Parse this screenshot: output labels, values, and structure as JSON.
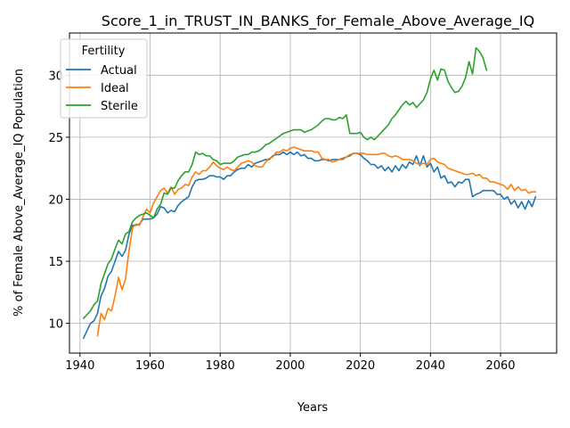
{
  "chart_data": {
    "type": "line",
    "title": "Score_1_in_TRUST_IN_BANKS_for_Female_Above_Average_IQ",
    "xlabel": "Years",
    "ylabel": "% of Female Above_Average_IQ Population",
    "xlim": [
      1937,
      2076
    ],
    "ylim": [
      7.6,
      33.4
    ],
    "xticks": [
      1940,
      1960,
      1980,
      2000,
      2020,
      2040,
      2060
    ],
    "yticks": [
      10,
      15,
      20,
      25,
      30
    ],
    "grid": true,
    "legend": {
      "title": "Fertility",
      "placement": "top-left"
    },
    "series": [
      {
        "name": "Actual",
        "color": "#1f77b4",
        "x": [
          1941,
          1942,
          1943,
          1944,
          1945,
          1946,
          1947,
          1948,
          1949,
          1950,
          1951,
          1952,
          1953,
          1954,
          1955,
          1956,
          1957,
          1958,
          1959,
          1960,
          1961,
          1962,
          1963,
          1964,
          1965,
          1966,
          1967,
          1968,
          1969,
          1970,
          1971,
          1972,
          1973,
          1974,
          1975,
          1976,
          1977,
          1978,
          1979,
          1980,
          1981,
          1982,
          1983,
          1984,
          1985,
          1986,
          1987,
          1988,
          1989,
          1990,
          1991,
          1992,
          1993,
          1994,
          1995,
          1996,
          1997,
          1998,
          1999,
          2000,
          2001,
          2002,
          2003,
          2004,
          2005,
          2006,
          2007,
          2008,
          2009,
          2010,
          2011,
          2012,
          2013,
          2014,
          2015,
          2016,
          2017,
          2018,
          2019,
          2020,
          2021,
          2022,
          2023,
          2024,
          2025,
          2026,
          2027,
          2028,
          2029,
          2030,
          2031,
          2032,
          2033,
          2034,
          2035,
          2036,
          2037,
          2038,
          2039,
          2040,
          2041,
          2042,
          2043,
          2044,
          2045,
          2046,
          2047,
          2048,
          2049,
          2050,
          2051,
          2052,
          2053,
          2054,
          2055,
          2056,
          2057,
          2058,
          2059,
          2060,
          2061,
          2062,
          2063,
          2064,
          2065,
          2066,
          2067,
          2068,
          2069,
          2070
        ],
        "values": [
          8.8,
          9.4,
          10.0,
          10.2,
          10.8,
          12.2,
          12.8,
          13.8,
          14.2,
          15.0,
          15.8,
          15.4,
          15.9,
          17.2,
          17.9,
          17.9,
          18.0,
          18.4,
          18.4,
          18.4,
          18.5,
          18.8,
          19.4,
          19.3,
          18.9,
          19.1,
          19.0,
          19.5,
          19.8,
          20.0,
          20.2,
          21.0,
          21.5,
          21.6,
          21.6,
          21.7,
          21.9,
          21.9,
          21.8,
          21.8,
          21.6,
          21.9,
          21.9,
          22.2,
          22.4,
          22.5,
          22.5,
          22.8,
          22.6,
          22.9,
          23.0,
          23.1,
          23.2,
          23.2,
          23.5,
          23.6,
          23.6,
          23.8,
          23.6,
          23.8,
          23.6,
          23.8,
          23.5,
          23.6,
          23.3,
          23.3,
          23.1,
          23.1,
          23.2,
          23.2,
          23.1,
          23.2,
          23.2,
          23.2,
          23.3,
          23.4,
          23.5,
          23.7,
          23.7,
          23.6,
          23.3,
          23.1,
          22.8,
          22.8,
          22.5,
          22.7,
          22.3,
          22.6,
          22.2,
          22.7,
          22.3,
          22.8,
          22.5,
          23.0,
          22.8,
          23.5,
          22.7,
          23.5,
          22.6,
          22.9,
          22.2,
          22.6,
          21.7,
          21.9,
          21.3,
          21.4,
          21.0,
          21.4,
          21.3,
          21.6,
          21.6,
          20.2,
          20.4,
          20.5,
          20.7,
          20.7,
          20.7,
          20.7,
          20.4,
          20.4,
          20.0,
          20.2,
          19.6,
          19.9,
          19.3,
          19.8,
          19.2,
          19.9,
          19.4,
          20.2
        ]
      },
      {
        "name": "Ideal",
        "color": "#ff7f0e",
        "x": [
          1945,
          1946,
          1947,
          1948,
          1949,
          1950,
          1951,
          1952,
          1953,
          1954,
          1955,
          1956,
          1957,
          1958,
          1959,
          1960,
          1961,
          1962,
          1963,
          1964,
          1965,
          1966,
          1967,
          1968,
          1969,
          1970,
          1971,
          1972,
          1973,
          1974,
          1975,
          1976,
          1977,
          1978,
          1979,
          1980,
          1981,
          1982,
          1983,
          1984,
          1985,
          1986,
          1987,
          1988,
          1989,
          1990,
          1991,
          1992,
          1993,
          1994,
          1995,
          1996,
          1997,
          1998,
          1999,
          2000,
          2001,
          2002,
          2003,
          2004,
          2005,
          2006,
          2007,
          2008,
          2009,
          2010,
          2011,
          2012,
          2013,
          2014,
          2015,
          2016,
          2017,
          2018,
          2019,
          2020,
          2021,
          2022,
          2023,
          2024,
          2025,
          2026,
          2027,
          2028,
          2029,
          2030,
          2031,
          2032,
          2033,
          2034,
          2035,
          2036,
          2037,
          2038,
          2039,
          2040,
          2041,
          2042,
          2043,
          2044,
          2045,
          2046,
          2047,
          2048,
          2049,
          2050,
          2051,
          2052,
          2053,
          2054,
          2055,
          2056,
          2057,
          2058,
          2059,
          2060,
          2061,
          2062,
          2063,
          2064,
          2065,
          2066,
          2067,
          2068,
          2069,
          2070
        ],
        "values": [
          9.0,
          10.8,
          10.3,
          11.2,
          11.0,
          12.2,
          13.7,
          12.7,
          13.6,
          15.9,
          17.7,
          18.0,
          17.9,
          18.6,
          19.2,
          18.9,
          19.7,
          20.2,
          20.7,
          20.9,
          20.5,
          21.0,
          20.4,
          20.8,
          20.9,
          21.2,
          21.1,
          21.8,
          22.2,
          22.0,
          22.3,
          22.3,
          22.6,
          23.0,
          22.7,
          22.5,
          22.4,
          22.6,
          22.4,
          22.3,
          22.6,
          22.9,
          23.0,
          23.1,
          23.0,
          22.7,
          22.6,
          22.6,
          23.0,
          23.3,
          23.4,
          23.8,
          23.8,
          24.0,
          23.9,
          24.1,
          24.2,
          24.1,
          24.0,
          23.9,
          23.9,
          23.9,
          23.8,
          23.8,
          23.3,
          23.2,
          23.2,
          23.0,
          23.1,
          23.2,
          23.2,
          23.4,
          23.6,
          23.7,
          23.7,
          23.7,
          23.7,
          23.6,
          23.6,
          23.6,
          23.6,
          23.7,
          23.7,
          23.5,
          23.4,
          23.5,
          23.4,
          23.2,
          23.2,
          23.2,
          23.1,
          22.9,
          22.8,
          22.9,
          22.8,
          23.2,
          23.3,
          23.0,
          22.9,
          22.8,
          22.5,
          22.4,
          22.3,
          22.2,
          22.1,
          22.0,
          22.0,
          22.1,
          21.9,
          22.0,
          21.7,
          21.7,
          21.4,
          21.4,
          21.3,
          21.2,
          21.1,
          20.8,
          21.2,
          20.7,
          21.0,
          20.7,
          20.8,
          20.5,
          20.6,
          20.6
        ]
      },
      {
        "name": "Sterile",
        "color": "#2ca02c",
        "x": [
          1941,
          1942,
          1943,
          1944,
          1945,
          1946,
          1947,
          1948,
          1949,
          1950,
          1951,
          1952,
          1953,
          1954,
          1955,
          1956,
          1957,
          1958,
          1959,
          1960,
          1961,
          1962,
          1963,
          1964,
          1965,
          1966,
          1967,
          1968,
          1969,
          1970,
          1971,
          1972,
          1973,
          1974,
          1975,
          1976,
          1977,
          1978,
          1979,
          1980,
          1981,
          1982,
          1983,
          1984,
          1985,
          1986,
          1987,
          1988,
          1989,
          1990,
          1991,
          1992,
          1993,
          1994,
          1995,
          1996,
          1997,
          1998,
          1999,
          2000,
          2001,
          2002,
          2003,
          2004,
          2005,
          2006,
          2007,
          2008,
          2009,
          2010,
          2011,
          2012,
          2013,
          2014,
          2015,
          2016,
          2017,
          2018,
          2019,
          2020,
          2021,
          2022,
          2023,
          2024,
          2025,
          2026,
          2027,
          2028,
          2029,
          2030,
          2031,
          2032,
          2033,
          2034,
          2035,
          2036,
          2037,
          2038,
          2039,
          2040,
          2041,
          2042,
          2043,
          2044,
          2045,
          2046,
          2047,
          2048,
          2049,
          2050,
          2051,
          2052,
          2053,
          2054,
          2055,
          2056
        ],
        "values": [
          10.4,
          10.7,
          11.0,
          11.5,
          11.8,
          13.2,
          14.0,
          14.8,
          15.2,
          16.0,
          16.7,
          16.4,
          17.2,
          17.4,
          18.2,
          18.5,
          18.7,
          18.8,
          18.9,
          18.7,
          18.5,
          19.2,
          19.6,
          20.5,
          20.4,
          20.9,
          20.9,
          21.5,
          21.9,
          22.2,
          22.2,
          22.8,
          23.8,
          23.6,
          23.7,
          23.5,
          23.5,
          23.2,
          23.1,
          22.8,
          22.9,
          22.9,
          22.9,
          23.1,
          23.4,
          23.5,
          23.6,
          23.6,
          23.8,
          23.8,
          23.9,
          24.1,
          24.4,
          24.5,
          24.7,
          24.9,
          25.1,
          25.3,
          25.4,
          25.5,
          25.6,
          25.6,
          25.6,
          25.4,
          25.5,
          25.6,
          25.8,
          26.0,
          26.3,
          26.5,
          26.5,
          26.4,
          26.4,
          26.6,
          26.5,
          26.8,
          25.3,
          25.3,
          25.3,
          25.4,
          25.0,
          24.8,
          25.0,
          24.8,
          25.1,
          25.4,
          25.7,
          26.0,
          26.5,
          26.8,
          27.2,
          27.6,
          27.9,
          27.6,
          27.8,
          27.4,
          27.7,
          28.0,
          28.6,
          29.7,
          30.4,
          29.6,
          30.5,
          30.4,
          29.5,
          29.0,
          28.6,
          28.7,
          29.1,
          29.8,
          31.1,
          30.1,
          32.2,
          31.9,
          31.4,
          30.4
        ]
      }
    ]
  }
}
